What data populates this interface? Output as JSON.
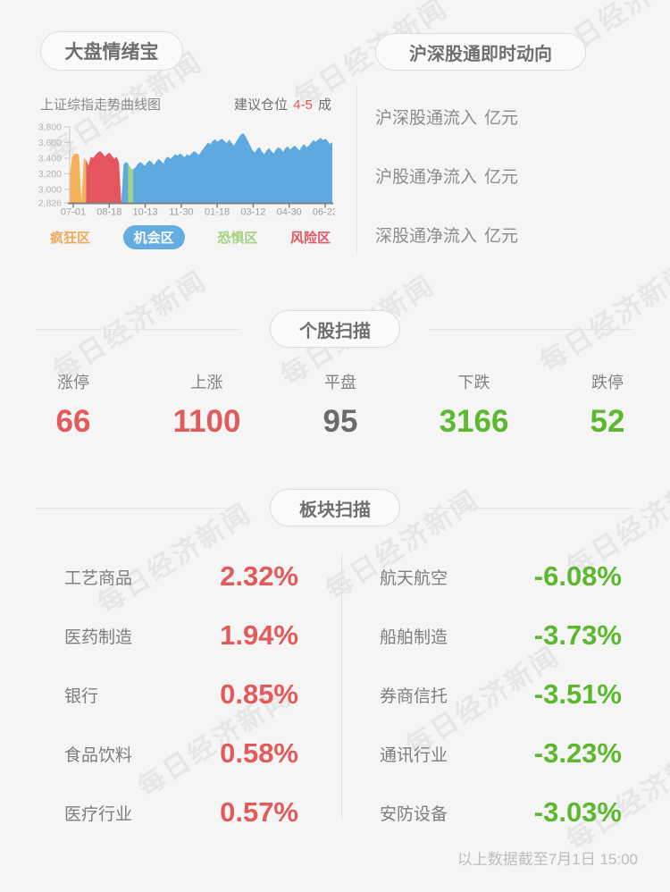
{
  "page": {
    "background": "#f5f5f5",
    "watermark_text": "每日经济新闻",
    "footer_note": "以上数据截至7月1日 15:00"
  },
  "sentiment": {
    "title": "大盘情绪宝",
    "chart_title": "上证综指走势曲线图",
    "advice_prefix": "建议仓位",
    "advice_value": "4-5",
    "advice_suffix": "成",
    "advice_value_color": "#e4565a"
  },
  "chart_data": {
    "type": "area",
    "title": "上证综指走势曲线图",
    "x_tick_labels": [
      "07-01",
      "08-18",
      "10-13",
      "11-30",
      "01-18",
      "03-12",
      "04-30",
      "06-23"
    ],
    "y_tick_labels": [
      "3,800",
      "3,600",
      "3,400",
      "3,200",
      "3,000",
      "2,826"
    ],
    "y_tick_values": [
      3800,
      3600,
      3400,
      3200,
      3000,
      2826
    ],
    "ylim": [
      2826,
      3800
    ],
    "grid": false,
    "legend_position": "bottom",
    "zones": {
      "crazy": {
        "label": "疯狂区",
        "color": "#f4b158"
      },
      "opportunity": {
        "label": "机会区",
        "color": "#5ea9df"
      },
      "fear": {
        "label": "恐惧区",
        "color": "#a5d37e"
      },
      "risk": {
        "label": "风险区",
        "color": "#e4555f"
      }
    },
    "legend": [
      {
        "label": "疯狂区",
        "zone": "crazy",
        "color": "#f0a85a",
        "active": false
      },
      {
        "label": "机会区",
        "zone": "opportunity",
        "color": "#64ade3",
        "active": true
      },
      {
        "label": "恐惧区",
        "zone": "fear",
        "color": "#a3d37e",
        "active": false
      },
      {
        "label": "风险区",
        "zone": "risk",
        "color": "#e4565f",
        "active": false
      }
    ],
    "segments": [
      {
        "zone": "risk",
        "values": [
          3150
        ]
      },
      {
        "zone": "crazy",
        "values": [
          3420,
          3450,
          3460,
          3440,
          2830,
          3400,
          3380
        ]
      },
      {
        "zone": "risk",
        "values": [
          3300,
          3420,
          3400,
          3440,
          3470,
          3490,
          3460,
          3420,
          3450,
          3470,
          3430,
          3390,
          3420,
          3350,
          2830
        ]
      },
      {
        "zone": "opportunity",
        "values": [
          3320,
          3350,
          3330
        ]
      },
      {
        "zone": "fear",
        "values": [
          3270,
          3255
        ]
      },
      {
        "zone": "opportunity",
        "values": [
          3280,
          3320,
          3350,
          3330,
          3300,
          3340,
          3370,
          3350,
          3310,
          3360,
          3390,
          3360,
          3330,
          3400,
          3420,
          3390,
          3420,
          3450,
          3430,
          3460,
          3440,
          3410,
          3450,
          3430,
          3460,
          3490,
          3470,
          3440,
          3480,
          3520,
          3560,
          3600,
          3580,
          3620,
          3640,
          3610,
          3630,
          3650,
          3620,
          3590,
          3640,
          3600,
          3560,
          3610,
          3660,
          3700,
          3720,
          3680,
          3620,
          3560,
          3500,
          3470,
          3520,
          3540,
          3480,
          3450,
          3500,
          3530,
          3490,
          3460,
          3510,
          3540,
          3520,
          3480,
          3530,
          3550,
          3510,
          3540,
          3560,
          3530,
          3500,
          3550,
          3580,
          3540,
          3560,
          3600,
          3630,
          3610,
          3640,
          3660,
          3630,
          3650,
          3620,
          3580,
          3610
        ]
      }
    ]
  },
  "connect": {
    "title": "沪深股通即时动向",
    "rows": [
      {
        "label": "沪深股通流入",
        "unit": "亿元"
      },
      {
        "label": "沪股通净流入",
        "unit": "亿元"
      },
      {
        "label": "深股通净流入",
        "unit": "亿元"
      }
    ]
  },
  "stocks": {
    "title": "个股扫描",
    "items": [
      {
        "label": "涨停",
        "value": "66",
        "color": "#e35a5a"
      },
      {
        "label": "上涨",
        "value": "1100",
        "color": "#e35a5a"
      },
      {
        "label": "平盘",
        "value": "95",
        "color": "#6b6b6b"
      },
      {
        "label": "下跌",
        "value": "3166",
        "color": "#5cb82e"
      },
      {
        "label": "跌停",
        "value": "52",
        "color": "#5cb82e"
      }
    ]
  },
  "sectors": {
    "title": "板块扫描",
    "up_color": "#e35a5a",
    "down_color": "#5cb82e",
    "left": [
      {
        "label": "工艺商品",
        "value": "2.32%"
      },
      {
        "label": "医药制造",
        "value": "1.94%"
      },
      {
        "label": "银行",
        "value": "0.85%"
      },
      {
        "label": "食品饮料",
        "value": "0.58%"
      },
      {
        "label": "医疗行业",
        "value": "0.57%"
      }
    ],
    "right": [
      {
        "label": "航天航空",
        "value": "-6.08%"
      },
      {
        "label": "船舶制造",
        "value": "-3.73%"
      },
      {
        "label": "券商信托",
        "value": "-3.51%"
      },
      {
        "label": "通讯行业",
        "value": "-3.23%"
      },
      {
        "label": "安防设备",
        "value": "-3.03%"
      }
    ]
  }
}
